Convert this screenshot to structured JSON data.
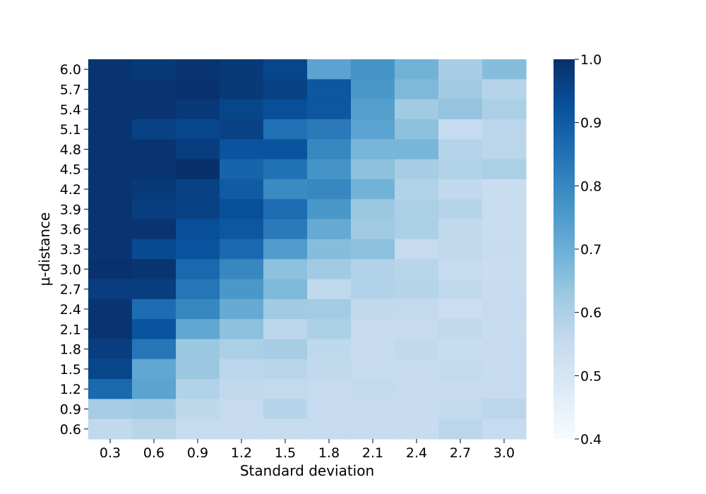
{
  "chart_data": {
    "type": "heatmap",
    "title": "",
    "xlabel": "Standard deviation",
    "ylabel": "μ-distance",
    "x_categories": [
      "0.3",
      "0.6",
      "0.9",
      "1.2",
      "1.5",
      "1.8",
      "2.1",
      "2.4",
      "2.7",
      "3.0"
    ],
    "y_categories": [
      "6.0",
      "5.7",
      "5.4",
      "5.1",
      "4.8",
      "4.5",
      "4.2",
      "3.9",
      "3.6",
      "3.3",
      "3.0",
      "2.7",
      "2.4",
      "2.1",
      "1.8",
      "1.5",
      "1.2",
      "0.9",
      "0.6"
    ],
    "values": [
      [
        0.99,
        0.98,
        0.99,
        0.98,
        0.95,
        0.73,
        0.77,
        0.69,
        0.61,
        0.66
      ],
      [
        0.99,
        0.99,
        0.995,
        0.98,
        0.96,
        0.91,
        0.76,
        0.67,
        0.62,
        0.58
      ],
      [
        0.99,
        0.99,
        0.98,
        0.95,
        0.93,
        0.91,
        0.74,
        0.62,
        0.64,
        0.6
      ],
      [
        0.99,
        0.96,
        0.95,
        0.96,
        0.85,
        0.83,
        0.73,
        0.65,
        0.55,
        0.57
      ],
      [
        0.99,
        0.99,
        0.97,
        0.92,
        0.92,
        0.8,
        0.68,
        0.68,
        0.58,
        0.57
      ],
      [
        0.99,
        0.99,
        1.0,
        0.88,
        0.85,
        0.77,
        0.65,
        0.61,
        0.59,
        0.6
      ],
      [
        0.99,
        0.98,
        0.96,
        0.9,
        0.79,
        0.8,
        0.69,
        0.59,
        0.56,
        0.54
      ],
      [
        0.99,
        0.97,
        0.96,
        0.93,
        0.86,
        0.76,
        0.63,
        0.6,
        0.58,
        0.54
      ],
      [
        0.99,
        0.99,
        0.93,
        0.91,
        0.83,
        0.71,
        0.62,
        0.6,
        0.56,
        0.54
      ],
      [
        0.99,
        0.94,
        0.92,
        0.87,
        0.75,
        0.66,
        0.65,
        0.55,
        0.56,
        0.545
      ],
      [
        0.995,
        0.99,
        0.87,
        0.8,
        0.65,
        0.62,
        0.59,
        0.575,
        0.55,
        0.54
      ],
      [
        0.97,
        0.97,
        0.84,
        0.76,
        0.67,
        0.56,
        0.59,
        0.58,
        0.56,
        0.545
      ],
      [
        0.99,
        0.86,
        0.8,
        0.71,
        0.62,
        0.615,
        0.56,
        0.555,
        0.535,
        0.55
      ],
      [
        0.99,
        0.92,
        0.72,
        0.65,
        0.57,
        0.6,
        0.55,
        0.55,
        0.56,
        0.545
      ],
      [
        0.97,
        0.84,
        0.63,
        0.6,
        0.61,
        0.565,
        0.55,
        0.56,
        0.545,
        0.55
      ],
      [
        0.95,
        0.72,
        0.63,
        0.57,
        0.575,
        0.56,
        0.55,
        0.55,
        0.555,
        0.55
      ],
      [
        0.87,
        0.73,
        0.59,
        0.56,
        0.555,
        0.55,
        0.555,
        0.55,
        0.55,
        0.55
      ],
      [
        0.61,
        0.62,
        0.565,
        0.55,
        0.58,
        0.55,
        0.545,
        0.55,
        0.555,
        0.57
      ],
      [
        0.56,
        0.575,
        0.55,
        0.55,
        0.545,
        0.55,
        0.55,
        0.545,
        0.57,
        0.55
      ]
    ],
    "colorbar": {
      "min": 0.4,
      "max": 1.0,
      "ticks": [
        "1.0",
        "0.9",
        "0.8",
        "0.7",
        "0.6",
        "0.5",
        "0.4"
      ],
      "tick_values": [
        1.0,
        0.9,
        0.8,
        0.7,
        0.6,
        0.5,
        0.4
      ],
      "colormap": "Blues",
      "colors": [
        "#f7fbff",
        "#deebf7",
        "#c6dbef",
        "#9ecae1",
        "#6baed6",
        "#4292c6",
        "#2171b5",
        "#08519c",
        "#08306b"
      ]
    },
    "grid": false,
    "legend": "colorbar-right"
  }
}
